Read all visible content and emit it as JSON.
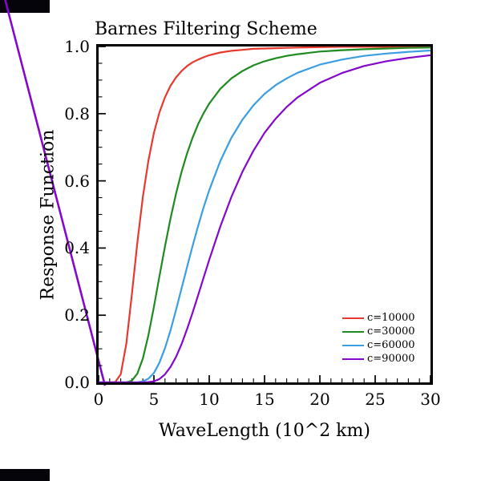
{
  "colors": {
    "background": "#ffffff",
    "frame": "#000000",
    "artifact_bar": "#04040a",
    "artifact_line": "#8408cc"
  },
  "chart_data": {
    "type": "line",
    "title": "Barnes Filtering Scheme",
    "xlabel": "WaveLength (10^2 km)",
    "ylabel": "Response Function",
    "xlim": [
      0,
      30
    ],
    "ylim": [
      0,
      1
    ],
    "xticks": [
      0,
      5,
      10,
      15,
      20,
      25,
      30
    ],
    "xtick_labels": [
      "0",
      "5",
      "10",
      "15",
      "20",
      "25",
      "30"
    ],
    "yticks": [
      0,
      0.2,
      0.4,
      0.6,
      0.8,
      1.0
    ],
    "ytick_labels": [
      "0.0",
      "0.2",
      "0.4",
      "0.6",
      "0.8",
      "1.0"
    ],
    "grid": false,
    "legend_position": "lower-right-inside",
    "x": [
      0,
      0.5,
      1,
      1.5,
      2,
      2.5,
      3,
      3.5,
      4,
      4.5,
      5,
      5.5,
      6,
      6.5,
      7,
      7.5,
      8,
      8.5,
      9,
      9.5,
      10,
      11,
      12,
      13,
      14,
      15,
      16,
      17,
      18,
      20,
      22,
      24,
      26,
      28,
      30
    ],
    "series": [
      {
        "name": "c=10000",
        "color": "#e8392e",
        "values": [
          0,
          0,
          0,
          0.001,
          0.024,
          0.114,
          0.26,
          0.416,
          0.552,
          0.66,
          0.743,
          0.804,
          0.849,
          0.883,
          0.908,
          0.927,
          0.942,
          0.953,
          0.961,
          0.968,
          0.974,
          0.982,
          0.987,
          0.99,
          0.993,
          0.994,
          0.995,
          0.996,
          0.997,
          0.998,
          0.999,
          0.999,
          0.999,
          0.999,
          1.0
        ]
      },
      {
        "name": "c=30000",
        "color": "#1f8a1f",
        "values": [
          0,
          0,
          0,
          0,
          0,
          0,
          0.005,
          0.026,
          0.071,
          0.14,
          0.225,
          0.316,
          0.405,
          0.488,
          0.562,
          0.627,
          0.682,
          0.729,
          0.769,
          0.802,
          0.83,
          0.874,
          0.905,
          0.927,
          0.944,
          0.956,
          0.965,
          0.972,
          0.977,
          0.985,
          0.989,
          0.992,
          0.994,
          0.996,
          0.997
        ]
      },
      {
        "name": "c=60000",
        "color": "#3b9ee0",
        "values": [
          0,
          0,
          0,
          0,
          0,
          0,
          0,
          0,
          0.003,
          0.011,
          0.028,
          0.059,
          0.102,
          0.155,
          0.216,
          0.28,
          0.344,
          0.407,
          0.466,
          0.522,
          0.572,
          0.659,
          0.728,
          0.782,
          0.825,
          0.859,
          0.885,
          0.905,
          0.922,
          0.946,
          0.961,
          0.972,
          0.979,
          0.984,
          0.988
        ]
      },
      {
        "name": "c=90000",
        "color": "#8408cc",
        "values": [
          0,
          0,
          0,
          0,
          0,
          0,
          0,
          0,
          0,
          0.001,
          0.003,
          0.01,
          0.024,
          0.046,
          0.076,
          0.114,
          0.159,
          0.208,
          0.26,
          0.313,
          0.365,
          0.464,
          0.552,
          0.627,
          0.69,
          0.743,
          0.785,
          0.82,
          0.849,
          0.892,
          0.921,
          0.942,
          0.956,
          0.966,
          0.974
        ]
      }
    ]
  }
}
